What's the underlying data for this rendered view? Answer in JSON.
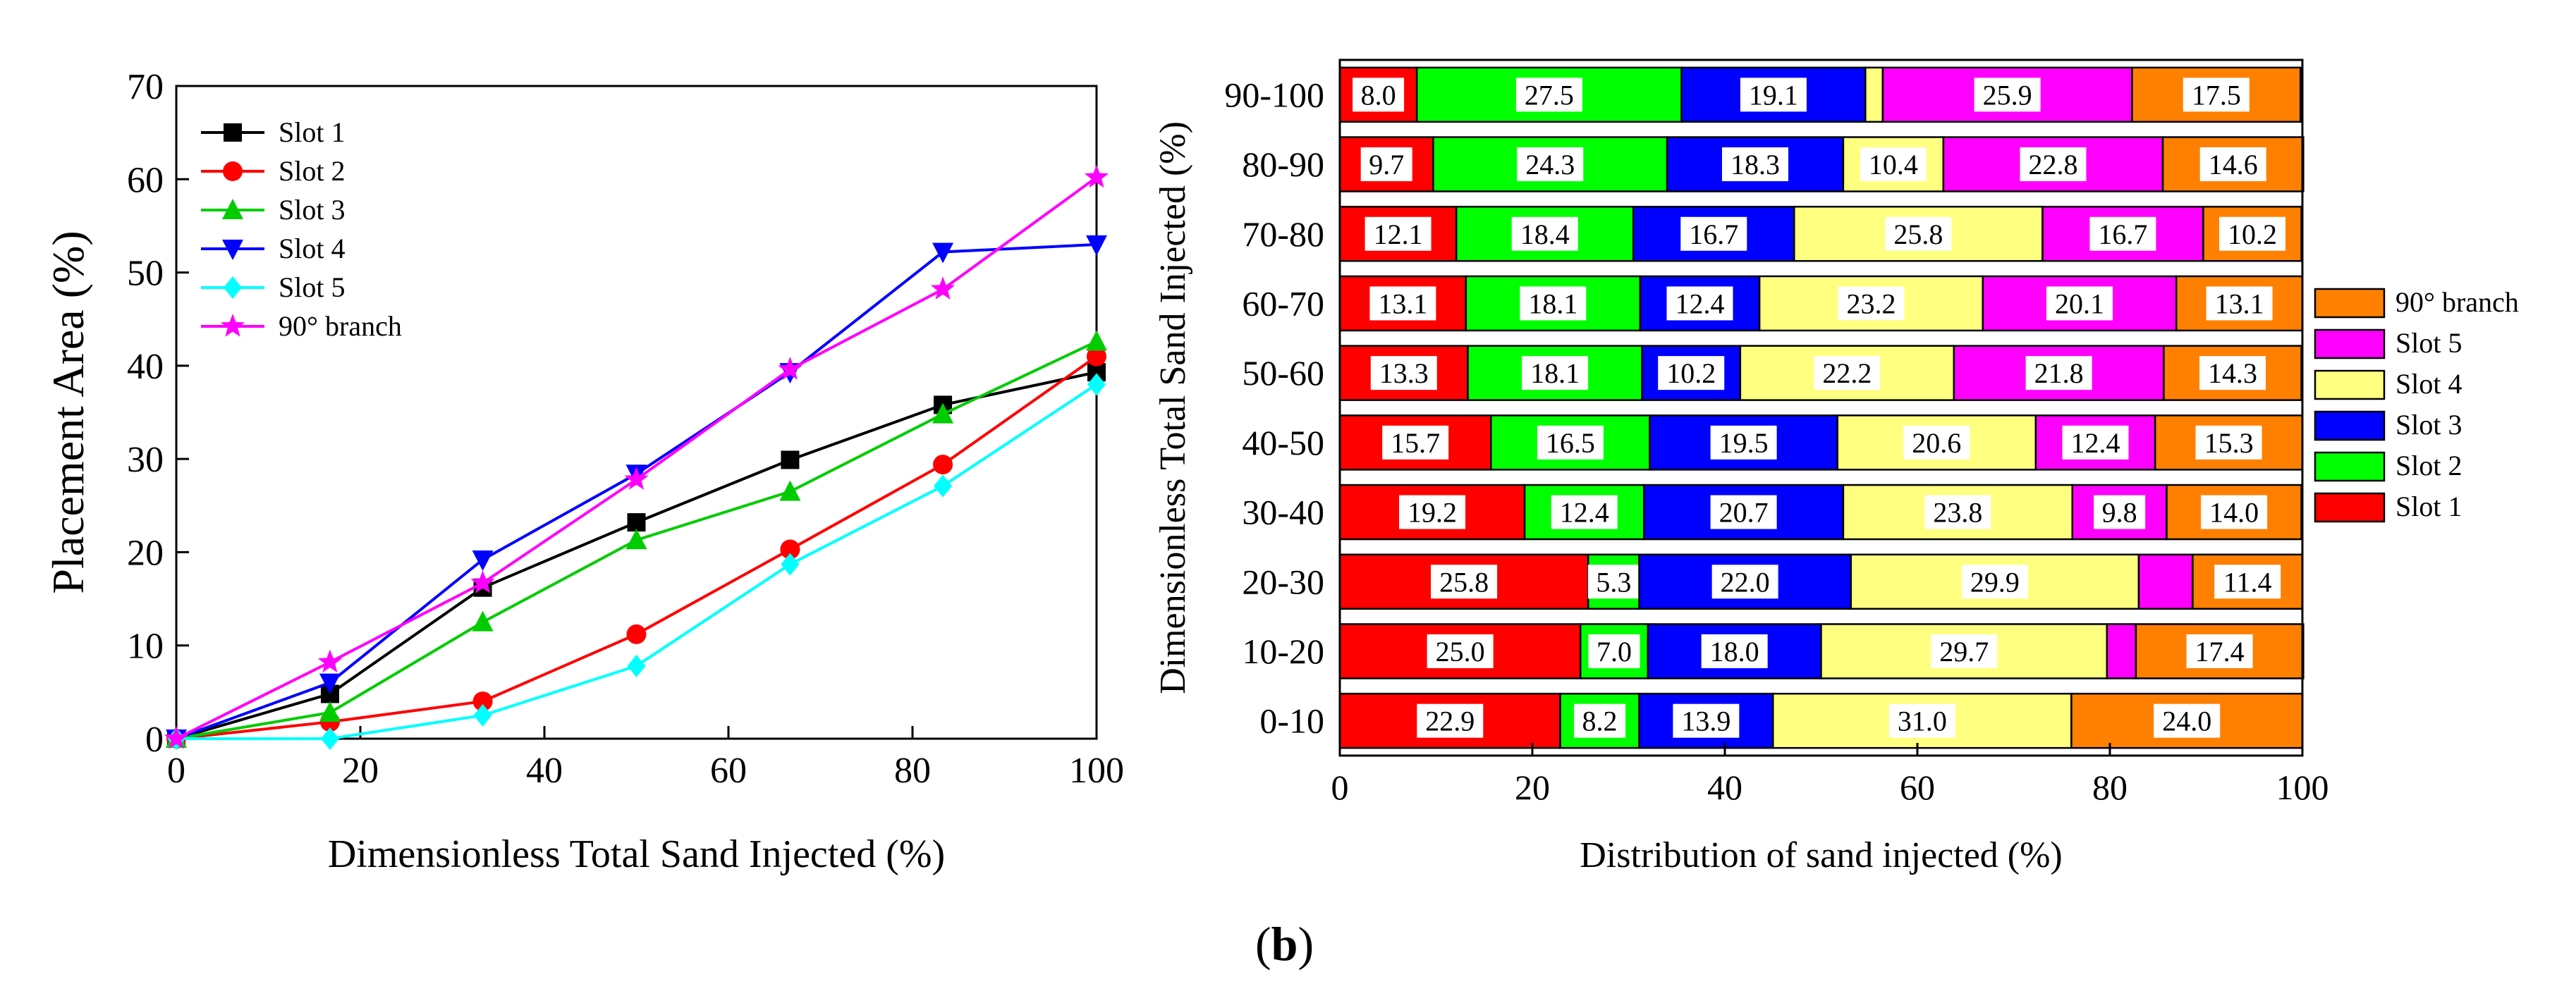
{
  "chart_data": [
    {
      "type": "line",
      "title": "",
      "xlabel": "Dimensionless Total Sand Injected (%)",
      "ylabel": "Placement Area (%)",
      "xlim": [
        0,
        100
      ],
      "ylim": [
        0,
        70
      ],
      "xticks": [
        "0",
        "20",
        "40",
        "60",
        "80",
        "100"
      ],
      "yticks": [
        "0",
        "10",
        "20",
        "30",
        "40",
        "50",
        "60",
        "70"
      ],
      "x": [
        0,
        16.7,
        33.3,
        50,
        66.7,
        83.3,
        100
      ],
      "legend_position": "top-left",
      "series": [
        {
          "name": "Slot 1",
          "color": "#000000",
          "marker": "square",
          "values": [
            0,
            4.8,
            16.2,
            23.2,
            29.9,
            35.8,
            39.3
          ]
        },
        {
          "name": "Slot 2",
          "color": "#ff0000",
          "marker": "circle",
          "values": [
            0,
            1.8,
            4.0,
            11.2,
            20.3,
            29.4,
            41.0
          ]
        },
        {
          "name": "Slot 3",
          "color": "#00cc00",
          "marker": "triangle-up",
          "values": [
            0,
            2.8,
            12.5,
            21.3,
            26.5,
            34.8,
            42.6
          ]
        },
        {
          "name": "Slot 4",
          "color": "#0000ff",
          "marker": "triangle-down",
          "values": [
            0,
            6.0,
            19.2,
            28.4,
            39.3,
            52.2,
            53.0
          ]
        },
        {
          "name": "Slot 5",
          "color": "#00ffff",
          "marker": "diamond",
          "values": [
            0,
            0,
            2.5,
            7.8,
            18.7,
            27.1,
            38.0
          ]
        },
        {
          "name": "90° branch",
          "color": "#ff00ff",
          "marker": "star",
          "values": [
            0,
            8.2,
            16.7,
            27.8,
            39.6,
            48.2,
            60.2
          ]
        }
      ]
    },
    {
      "type": "bar",
      "orientation": "horizontal",
      "stacked": true,
      "title": "",
      "xlabel": "Distribution of sand injected (%)",
      "ylabel": "Dimensionless Total Sand Injected (%)",
      "xlim": [
        0,
        100
      ],
      "xticks": [
        "0",
        "20",
        "40",
        "60",
        "80",
        "100"
      ],
      "categories": [
        "0-10",
        "10-20",
        "20-30",
        "30-40",
        "40-50",
        "50-60",
        "60-70",
        "70-80",
        "80-90",
        "90-100"
      ],
      "legend_position": "right",
      "legend_order": [
        "90° branch",
        "Slot 5",
        "Slot 4",
        "Slot 3",
        "Slot 2",
        "Slot 1"
      ],
      "series": [
        {
          "name": "Slot 1",
          "color": "#ff0000",
          "values": [
            22.9,
            25.0,
            25.8,
            19.2,
            15.7,
            13.3,
            13.1,
            12.1,
            9.7,
            8.0
          ],
          "labels": [
            "22.9",
            "25.0",
            "25.8",
            "19.2",
            "15.7",
            "13.3",
            "13.1",
            "12.1",
            "9.7",
            "8.0"
          ]
        },
        {
          "name": "Slot 2",
          "color": "#00ff00",
          "values": [
            8.2,
            7.0,
            5.3,
            12.4,
            16.5,
            18.1,
            18.1,
            18.4,
            24.3,
            27.5
          ],
          "labels": [
            "8.2",
            "7.0",
            "5.3",
            "12.4",
            "16.5",
            "18.1",
            "18.1",
            "18.4",
            "24.3",
            "27.5"
          ]
        },
        {
          "name": "Slot 3",
          "color": "#0000ff",
          "values": [
            13.9,
            18.0,
            22.0,
            20.7,
            19.5,
            10.2,
            12.4,
            16.7,
            18.3,
            19.1
          ],
          "labels": [
            "13.9",
            "18.0",
            "22.0",
            "20.7",
            "19.5",
            "10.2",
            "12.4",
            "16.7",
            "18.3",
            "19.1"
          ]
        },
        {
          "name": "Slot 4",
          "color": "#ffff80",
          "values": [
            31.0,
            29.7,
            29.9,
            23.8,
            20.6,
            22.2,
            23.2,
            25.8,
            10.4,
            1.8
          ],
          "labels": [
            "31.0",
            "29.7",
            "29.9",
            "23.8",
            "20.6",
            "22.2",
            "23.2",
            "25.8",
            "10.4",
            ""
          ]
        },
        {
          "name": "Slot 5",
          "color": "#ff00ff",
          "values": [
            0,
            3.0,
            5.6,
            9.8,
            12.4,
            21.8,
            20.1,
            16.7,
            22.8,
            25.9
          ],
          "labels": [
            "",
            "",
            "",
            "9.8",
            "12.4",
            "21.8",
            "20.1",
            "16.7",
            "22.8",
            "25.9"
          ]
        },
        {
          "name": "90° branch",
          "color": "#ff8000",
          "values": [
            24.0,
            17.4,
            11.4,
            14.0,
            15.3,
            14.3,
            13.1,
            10.2,
            14.6,
            17.5
          ],
          "labels": [
            "24.0",
            "17.4",
            "11.4",
            "14.0",
            "15.3",
            "14.3",
            "13.1",
            "10.2",
            "14.6",
            "17.5"
          ]
        }
      ]
    }
  ],
  "panel_label": "b"
}
